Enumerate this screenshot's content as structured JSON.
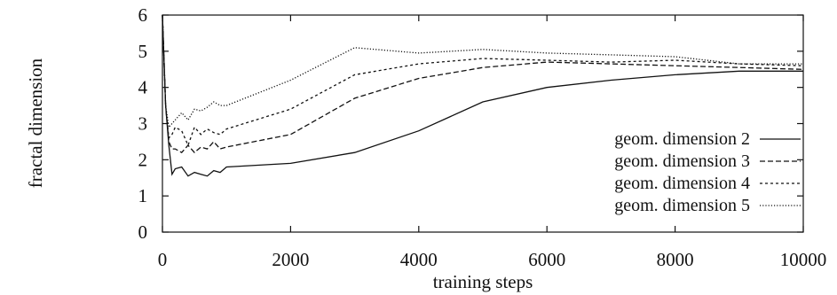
{
  "chart_data": {
    "type": "line",
    "xlabel": "training steps",
    "ylabel": "fractal dimension",
    "xlim": [
      0,
      10000
    ],
    "ylim": [
      0,
      6
    ],
    "x_ticks": [
      0,
      2000,
      4000,
      6000,
      8000,
      10000
    ],
    "y_ticks": [
      0,
      1,
      2,
      3,
      4,
      5,
      6
    ],
    "x_tick_labels": [
      "0",
      "2000",
      "4000",
      "6000",
      "8000",
      "10000"
    ],
    "y_tick_labels": [
      "0",
      "1",
      "2",
      "3",
      "4",
      "5",
      "6"
    ],
    "grid": false,
    "legend_position": "right",
    "series": [
      {
        "name": "geom. dimension 2",
        "dash": "solid",
        "x": [
          0,
          50,
          100,
          150,
          200,
          300,
          400,
          500,
          600,
          700,
          800,
          900,
          1000,
          2000,
          3000,
          4000,
          5000,
          6000,
          7000,
          8000,
          9000,
          10000
        ],
        "y": [
          6.0,
          3.5,
          2.4,
          1.6,
          1.75,
          1.8,
          1.55,
          1.65,
          1.6,
          1.55,
          1.7,
          1.65,
          1.8,
          1.9,
          2.2,
          2.8,
          3.6,
          4.0,
          4.2,
          4.35,
          4.45,
          4.45
        ]
      },
      {
        "name": "geom. dimension 3",
        "dash": "dashed",
        "x": [
          0,
          50,
          100,
          150,
          200,
          300,
          400,
          500,
          600,
          700,
          800,
          900,
          1000,
          2000,
          3000,
          4000,
          5000,
          6000,
          7000,
          8000,
          9000,
          10000
        ],
        "y": [
          6.0,
          3.5,
          2.5,
          2.3,
          2.3,
          2.2,
          2.4,
          2.2,
          2.35,
          2.3,
          2.5,
          2.3,
          2.35,
          2.7,
          3.7,
          4.25,
          4.55,
          4.7,
          4.65,
          4.6,
          4.55,
          4.5
        ]
      },
      {
        "name": "geom. dimension 4",
        "dash": "dotted",
        "x": [
          0,
          50,
          100,
          150,
          200,
          300,
          400,
          500,
          600,
          700,
          800,
          900,
          1000,
          2000,
          3000,
          4000,
          5000,
          6000,
          7000,
          8000,
          9000,
          10000
        ],
        "y": [
          6.0,
          3.5,
          2.6,
          2.7,
          2.9,
          2.8,
          2.4,
          2.9,
          2.7,
          2.85,
          2.75,
          2.7,
          2.85,
          3.4,
          4.35,
          4.65,
          4.8,
          4.75,
          4.7,
          4.75,
          4.65,
          4.6
        ]
      },
      {
        "name": "geom. dimension 5",
        "dash": "finedot",
        "x": [
          0,
          50,
          100,
          150,
          200,
          300,
          400,
          500,
          600,
          700,
          800,
          900,
          1000,
          2000,
          3000,
          4000,
          5000,
          6000,
          7000,
          8000,
          9000,
          10000
        ],
        "y": [
          6.0,
          3.5,
          2.9,
          3.0,
          3.1,
          3.3,
          3.1,
          3.4,
          3.35,
          3.45,
          3.6,
          3.5,
          3.5,
          4.2,
          5.1,
          4.95,
          5.05,
          4.95,
          4.9,
          4.85,
          4.65,
          4.65
        ]
      }
    ]
  }
}
